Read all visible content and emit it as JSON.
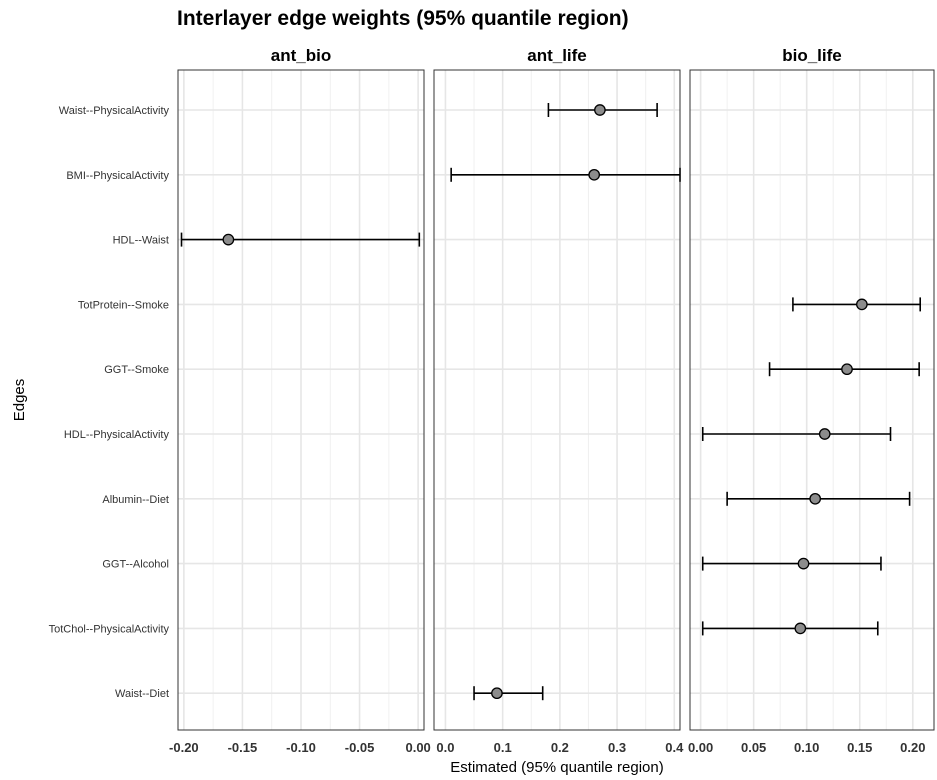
{
  "chart_data": {
    "type": "errorbar",
    "title": "Interlayer edge weights (95% quantile region)",
    "xlabel": "Estimated (95% quantile region)",
    "ylabel": "Edges",
    "categories": [
      "Waist--PhysicalActivity",
      "BMI--PhysicalActivity",
      "HDL--Waist",
      "TotProtein--Smoke",
      "GGT--Smoke",
      "HDL--PhysicalActivity",
      "Albumin--Diet",
      "GGT--Alcohol",
      "TotChol--PhysicalActivity",
      "Waist--Diet"
    ],
    "facets": [
      {
        "label": "ant_bio",
        "xlim": [
          -0.205,
          0.005
        ],
        "ticks": [
          -0.2,
          -0.15,
          -0.1,
          -0.05,
          0.0
        ],
        "tick_labels": [
          "-0.20",
          "-0.15",
          "-0.10",
          "-0.05",
          "0.00"
        ],
        "points": [
          {
            "edge": "HDL--Waist",
            "estimate": -0.162,
            "lower": -0.202,
            "upper": 0.001
          }
        ]
      },
      {
        "label": "ant_life",
        "xlim": [
          -0.02,
          0.41
        ],
        "ticks": [
          0.0,
          0.1,
          0.2,
          0.3,
          0.4
        ],
        "tick_labels": [
          "0.0",
          "0.1",
          "0.2",
          "0.3",
          "0.4"
        ],
        "points": [
          {
            "edge": "Waist--PhysicalActivity",
            "estimate": 0.27,
            "lower": 0.18,
            "upper": 0.37
          },
          {
            "edge": "BMI--PhysicalActivity",
            "estimate": 0.26,
            "lower": 0.01,
            "upper": 0.41
          },
          {
            "edge": "Waist--Diet",
            "estimate": 0.09,
            "lower": 0.05,
            "upper": 0.17
          }
        ]
      },
      {
        "label": "bio_life",
        "xlim": [
          -0.01,
          0.22
        ],
        "ticks": [
          0.0,
          0.05,
          0.1,
          0.15,
          0.2
        ],
        "tick_labels": [
          "0.00",
          "0.05",
          "0.10",
          "0.15",
          "0.20"
        ],
        "points": [
          {
            "edge": "TotProtein--Smoke",
            "estimate": 0.152,
            "lower": 0.087,
            "upper": 0.207
          },
          {
            "edge": "GGT--Smoke",
            "estimate": 0.138,
            "lower": 0.065,
            "upper": 0.206
          },
          {
            "edge": "HDL--PhysicalActivity",
            "estimate": 0.117,
            "lower": 0.002,
            "upper": 0.179
          },
          {
            "edge": "Albumin--Diet",
            "estimate": 0.108,
            "lower": 0.025,
            "upper": 0.197
          },
          {
            "edge": "GGT--Alcohol",
            "estimate": 0.097,
            "lower": 0.002,
            "upper": 0.17
          },
          {
            "edge": "TotChol--PhysicalActivity",
            "estimate": 0.094,
            "lower": 0.002,
            "upper": 0.167
          }
        ]
      }
    ],
    "grid": true,
    "colors": {
      "point_fill": "#8c8c8c",
      "point_stroke": "#000000",
      "grid": "#e6e6e6",
      "border": "#333333"
    }
  }
}
